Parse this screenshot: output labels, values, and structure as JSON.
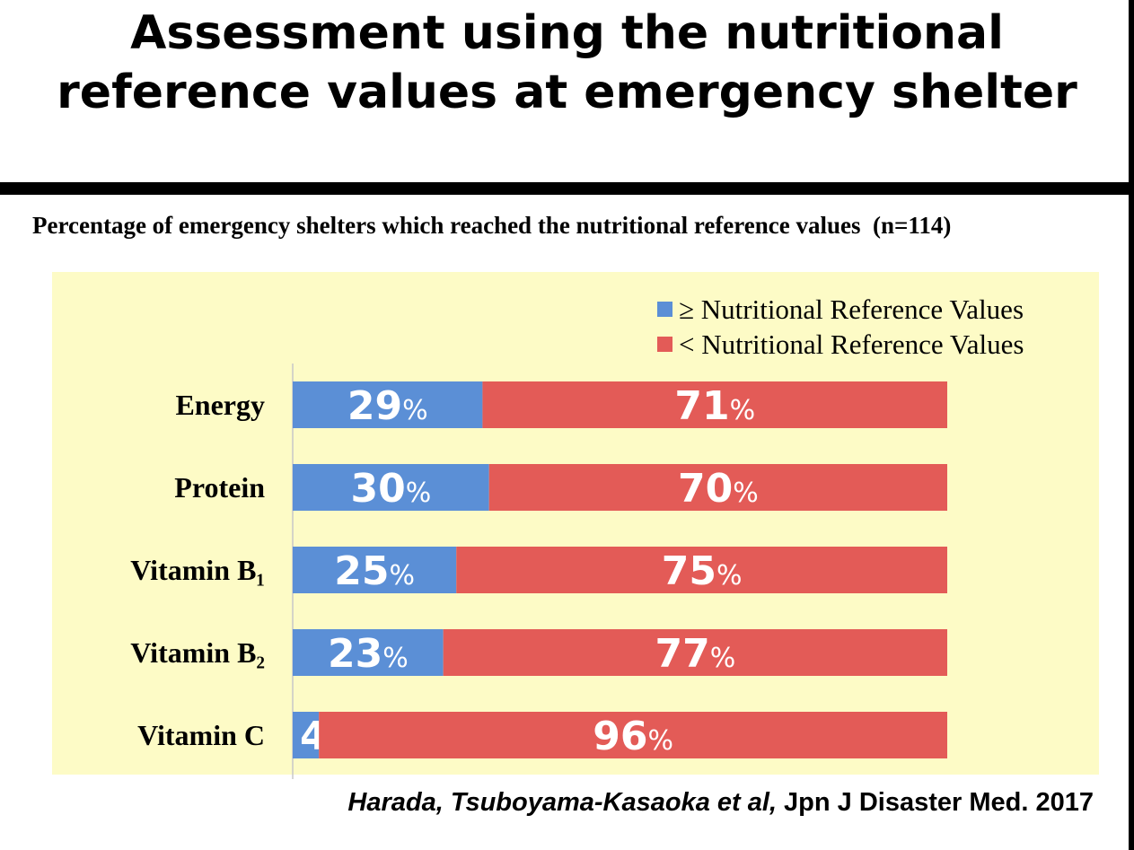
{
  "slide": {
    "title_line1": "Assessment using the nutritional",
    "title_line2": "reference values at emergency shelter",
    "citation_authors": "Harada, Tsuboyama-Kasaoka et al,",
    "citation_source": " Jpn J Disaster Med. 2017"
  },
  "chart_data": {
    "type": "bar",
    "stacked": true,
    "orientation": "horizontal",
    "title": "Percentage of emergency shelters which reached the nutritional reference values  (n=114)",
    "categories": [
      "Energy",
      "Protein",
      "Vitamin B₁",
      "Vitamin B₂",
      "Vitamin C"
    ],
    "series": [
      {
        "name": "≥ Nutritional Reference Values",
        "color": "#5b8fd6",
        "values": [
          29,
          30,
          25,
          23,
          4
        ]
      },
      {
        "name": "< Nutritional Reference Values",
        "color": "#e35b57",
        "values": [
          71,
          70,
          75,
          77,
          96
        ]
      }
    ],
    "value_unit": "%",
    "xlim": [
      0,
      100
    ],
    "legend_position": "top-right",
    "grid": false,
    "background_color": "#fdfbc6"
  }
}
